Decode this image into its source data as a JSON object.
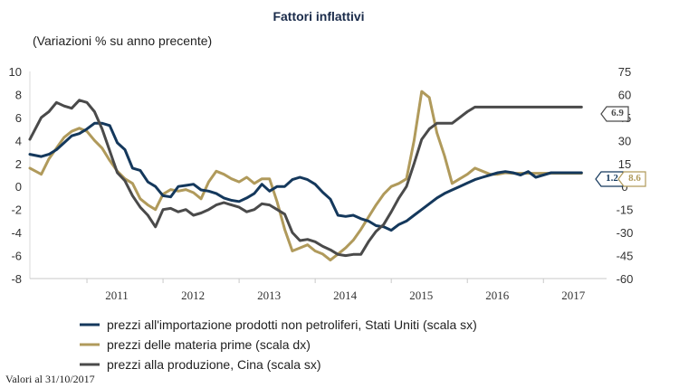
{
  "chart_data": {
    "type": "line",
    "title": "Fattori inflattivi",
    "subtitle": "(Variazioni % su anno precente)",
    "source_note": "Valori al 31/10/2017",
    "left_axis": {
      "min": -8,
      "max": 10,
      "ticks": [
        "10",
        "8",
        "6",
        "4",
        "2",
        "0",
        "-2",
        "-4",
        "-6",
        "-8"
      ]
    },
    "right_axis": {
      "min": -60,
      "max": 75,
      "ticks": [
        "75",
        "60",
        "45",
        "30",
        "15",
        "0",
        "-15",
        "-30",
        "-45",
        "-60"
      ]
    },
    "x_range": [
      2010.25,
      2017.83
    ],
    "year_labels": [
      "2011",
      "2012",
      "2013",
      "2014",
      "2015",
      "2016",
      "2017"
    ],
    "series": [
      {
        "name": "prezzi all'importazione prodotti non petroliferi, Stati Uniti (scala sx)",
        "axis": "left",
        "color": "#14385c",
        "callout": "1.2",
        "x": [
          2010.25,
          2010.4,
          2010.5,
          2010.6,
          2010.7,
          2010.8,
          2010.9,
          2011.0,
          2011.1,
          2011.2,
          2011.3,
          2011.4,
          2011.5,
          2011.6,
          2011.7,
          2011.8,
          2011.9,
          2012.0,
          2012.1,
          2012.2,
          2012.3,
          2012.4,
          2012.5,
          2012.6,
          2012.7,
          2012.8,
          2012.9,
          2013.0,
          2013.1,
          2013.2,
          2013.3,
          2013.4,
          2013.5,
          2013.6,
          2013.7,
          2013.8,
          2013.9,
          2014.0,
          2014.1,
          2014.2,
          2014.3,
          2014.4,
          2014.5,
          2014.6,
          2014.7,
          2014.8,
          2014.9,
          2015.0,
          2015.1,
          2015.2,
          2015.3,
          2015.4,
          2015.5,
          2015.6,
          2015.7,
          2015.8,
          2015.9,
          2016.0,
          2016.1,
          2016.2,
          2016.3,
          2016.4,
          2016.5,
          2016.6,
          2016.7,
          2016.8,
          2016.9,
          2017.0,
          2017.1,
          2017.2,
          2017.3,
          2017.4,
          2017.5
        ],
        "values": [
          2.8,
          2.6,
          2.8,
          3.2,
          3.8,
          4.4,
          4.6,
          5.0,
          5.5,
          5.5,
          5.3,
          3.8,
          3.2,
          1.6,
          1.4,
          0.4,
          0.0,
          -0.8,
          -0.9,
          0.0,
          0.1,
          0.2,
          -0.3,
          -0.4,
          -0.6,
          -1.0,
          -1.2,
          -1.3,
          -1.0,
          -0.6,
          0.2,
          -0.4,
          0.0,
          0.0,
          0.6,
          0.8,
          0.6,
          0.2,
          -0.5,
          -1.1,
          -2.5,
          -2.6,
          -2.5,
          -2.8,
          -3.0,
          -3.4,
          -3.5,
          -3.8,
          -3.3,
          -3.0,
          -2.5,
          -2.0,
          -1.5,
          -1.0,
          -0.6,
          -0.3,
          0.0,
          0.3,
          0.6,
          0.8,
          1.0,
          1.2,
          1.3,
          1.2,
          1.0,
          1.3,
          0.8,
          1.0,
          1.2,
          1.2,
          1.2,
          1.2,
          1.2
        ]
      },
      {
        "name": "prezzi delle materia prime (scala dx)",
        "axis": "right",
        "color": "#b09a5b",
        "callout": "8.6",
        "x": [
          2010.25,
          2010.4,
          2010.5,
          2010.6,
          2010.7,
          2010.8,
          2010.9,
          2011.0,
          2011.1,
          2011.2,
          2011.3,
          2011.4,
          2011.5,
          2011.6,
          2011.7,
          2011.8,
          2011.9,
          2012.0,
          2012.1,
          2012.2,
          2012.3,
          2012.4,
          2012.5,
          2012.6,
          2012.7,
          2012.8,
          2012.9,
          2013.0,
          2013.1,
          2013.2,
          2013.3,
          2013.4,
          2013.5,
          2013.6,
          2013.7,
          2013.8,
          2013.9,
          2014.0,
          2014.1,
          2014.2,
          2014.3,
          2014.4,
          2014.5,
          2014.6,
          2014.7,
          2014.8,
          2014.9,
          2015.0,
          2015.1,
          2015.2,
          2015.3,
          2015.4,
          2015.5,
          2015.6,
          2015.7,
          2015.8,
          2015.9,
          2016.0,
          2016.1,
          2016.2,
          2016.3,
          2016.4,
          2016.5,
          2016.6,
          2016.7,
          2016.8,
          2016.9,
          2017.0,
          2017.1,
          2017.2,
          2017.3,
          2017.4,
          2017.5
        ],
        "values": [
          12,
          8,
          18,
          25,
          32,
          36,
          38,
          36,
          30,
          25,
          17,
          10,
          5,
          2,
          -8,
          -12,
          -15,
          -5,
          -2,
          -3,
          -2,
          -4,
          -8,
          3,
          10,
          8,
          5,
          3,
          6,
          2,
          5,
          5,
          -10,
          -28,
          -42,
          -40,
          -38,
          -42,
          -44,
          -48,
          -44,
          -40,
          -35,
          -28,
          -20,
          -12,
          -5,
          0,
          2,
          5,
          30,
          62,
          58,
          35,
          20,
          2,
          5,
          8,
          12,
          10,
          8,
          8,
          9,
          8.6,
          8.6,
          8.6,
          8.6,
          8.6,
          8.6,
          8.6,
          8.6,
          8.6,
          8.6
        ]
      },
      {
        "name": "prezzi alla produzione, Cina (scala sx)",
        "axis": "left",
        "color": "#4a4a4a",
        "callout": "6.9",
        "x": [
          2010.25,
          2010.4,
          2010.5,
          2010.6,
          2010.7,
          2010.8,
          2010.9,
          2011.0,
          2011.1,
          2011.2,
          2011.3,
          2011.4,
          2011.5,
          2011.6,
          2011.7,
          2011.8,
          2011.9,
          2012.0,
          2012.1,
          2012.2,
          2012.3,
          2012.4,
          2012.5,
          2012.6,
          2012.7,
          2012.8,
          2012.9,
          2013.0,
          2013.1,
          2013.2,
          2013.3,
          2013.4,
          2013.5,
          2013.6,
          2013.7,
          2013.8,
          2013.9,
          2014.0,
          2014.1,
          2014.2,
          2014.3,
          2014.4,
          2014.5,
          2014.6,
          2014.7,
          2014.8,
          2014.9,
          2015.0,
          2015.1,
          2015.2,
          2015.3,
          2015.4,
          2015.5,
          2015.6,
          2015.7,
          2015.8,
          2015.9,
          2016.0,
          2016.1,
          2016.2,
          2016.3,
          2016.4,
          2016.5,
          2016.6,
          2016.7,
          2016.8,
          2016.9,
          2017.0,
          2017.1,
          2017.2,
          2017.3,
          2017.4,
          2017.5
        ],
        "values": [
          4.1,
          6.0,
          6.5,
          7.3,
          7.0,
          6.8,
          7.5,
          7.3,
          6.5,
          5.0,
          3.1,
          1.2,
          0.5,
          -0.8,
          -1.8,
          -2.5,
          -3.5,
          -2.0,
          -1.9,
          -2.2,
          -2.0,
          -2.5,
          -2.3,
          -2.0,
          -1.6,
          -1.4,
          -1.6,
          -1.8,
          -2.2,
          -2.0,
          -1.5,
          -1.6,
          -2.0,
          -2.4,
          -4.0,
          -4.7,
          -4.6,
          -4.8,
          -5.2,
          -5.5,
          -5.9,
          -6.0,
          -5.9,
          -5.9,
          -4.8,
          -3.9,
          -3.3,
          -2.2,
          -1.0,
          0.0,
          2.0,
          4.1,
          5.0,
          5.5,
          5.5,
          5.5,
          6.0,
          6.5,
          6.9,
          6.9,
          6.9,
          6.9,
          6.9,
          6.9,
          6.9,
          6.9,
          6.9,
          6.9,
          6.9,
          6.9,
          6.9,
          6.9,
          6.9
        ]
      }
    ]
  }
}
